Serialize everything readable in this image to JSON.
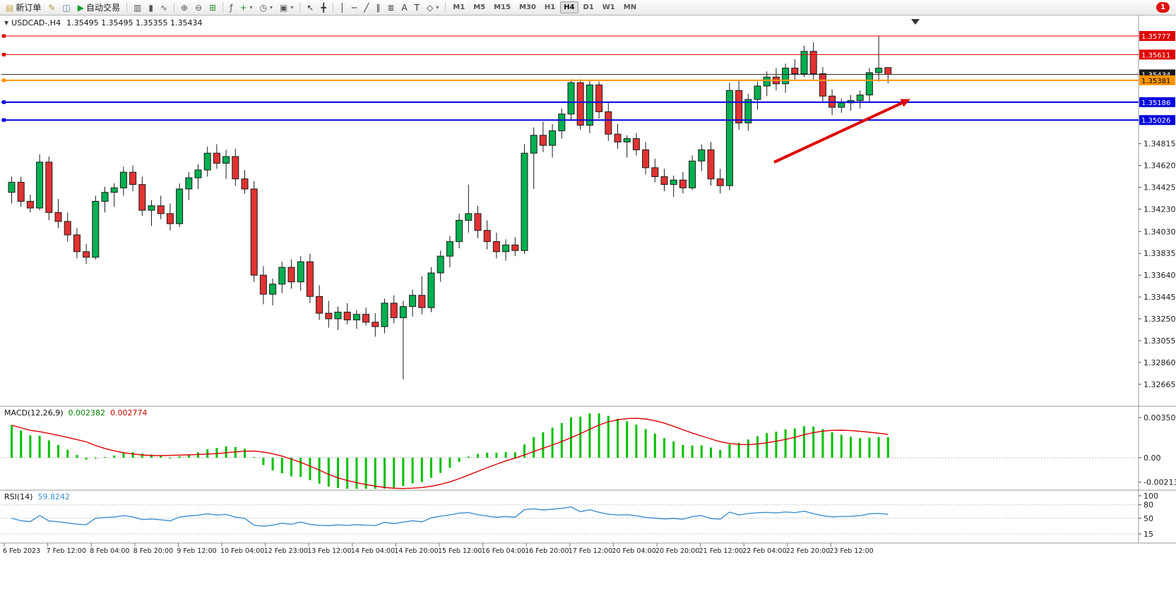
{
  "toolbar": {
    "items": [
      {
        "name": "new-order-button",
        "glyph": "▤",
        "glyph_color": "#caa53d",
        "label": "新订单"
      },
      {
        "name": "metaeditor-button",
        "glyph": "✎",
        "glyph_color": "#b8912f"
      },
      {
        "name": "data-window-button",
        "glyph": "◫",
        "glyph_color": "#5577aa"
      },
      {
        "name": "autotrading-button",
        "glyph": "▶",
        "glyph_color": "#0f9d2e",
        "label": "自动交易"
      },
      {
        "sep": true
      },
      {
        "name": "bar-chart-button",
        "glyph": "▥",
        "glyph_color": "#555555"
      },
      {
        "name": "candlestick-chart-button",
        "glyph": "▮",
        "glyph_color": "#555555"
      },
      {
        "name": "line-chart-button",
        "glyph": "∿",
        "glyph_color": "#555555"
      },
      {
        "sep": true
      },
      {
        "name": "zoom-in-button",
        "glyph": "⊕",
        "glyph_color": "#555555"
      },
      {
        "name": "zoom-out-button",
        "glyph": "⊖",
        "glyph_color": "#555555"
      },
      {
        "name": "tile-windows-button",
        "glyph": "⊞",
        "glyph_color": "#2e8b2e"
      },
      {
        "sep": true
      },
      {
        "name": "indicators-button",
        "glyph": "ƒ",
        "glyph_color": "#555555"
      },
      {
        "name": "add-indicator-button",
        "glyph": "+",
        "glyph_color": "#0f9d2e",
        "dropdown": true
      },
      {
        "name": "period-button",
        "glyph": "◷",
        "glyph_color": "#555555",
        "dropdown": true
      },
      {
        "name": "chart-snapshot-button",
        "glyph": "▣",
        "glyph_color": "#555555",
        "dropdown": true
      },
      {
        "sep": true
      },
      {
        "name": "cursor-button",
        "glyph": "↖",
        "glyph_color": "#333333"
      },
      {
        "name": "crosshair-button",
        "glyph": "╋",
        "glyph_color": "#333333"
      },
      {
        "sep": true
      },
      {
        "name": "vertical-line-button",
        "glyph": "│",
        "glyph_color": "#333333"
      },
      {
        "name": "horizontal-line-button",
        "glyph": "─",
        "glyph_color": "#333333"
      },
      {
        "name": "trendline-button",
        "glyph": "╱",
        "glyph_color": "#333333"
      },
      {
        "name": "equidistant-channel-button",
        "glyph": "∥",
        "glyph_color": "#333333"
      },
      {
        "name": "fibonacci-button",
        "glyph": "≣",
        "glyph_color": "#333333"
      },
      {
        "name": "text-button",
        "glyph": "A",
        "glyph_color": "#333333"
      },
      {
        "name": "text-label-button",
        "glyph": "T",
        "glyph_color": "#333333"
      },
      {
        "name": "shapes-button",
        "glyph": "◇",
        "glyph_color": "#333333",
        "dropdown": true
      },
      {
        "sep": true
      }
    ],
    "timeframes": [
      "M1",
      "M5",
      "M15",
      "M30",
      "H1",
      "H4",
      "D1",
      "W1",
      "MN"
    ],
    "active_timeframe": "H4",
    "notification_badge": "1"
  },
  "chart_header": {
    "symbol_period": "USDCAD-,H4",
    "ohlc": "1.35495 1.35495 1.35355 1.35434"
  },
  "chart_data": {
    "type": "candlestick",
    "symbol": "USDCAD",
    "timeframe": "H4",
    "price_axis": {
      "min": 1.32469,
      "max": 1.3596,
      "ticks": [
        "1.34815",
        "1.34620",
        "1.34425",
        "1.34230",
        "1.34030",
        "1.33835",
        "1.33640",
        "1.33445",
        "1.33250",
        "1.33055",
        "1.32860",
        "1.32665"
      ]
    },
    "time_axis": [
      "6 Feb 2023",
      "7 Feb 12:00",
      "8 Feb 04:00",
      "8 Feb 20:00",
      "9 Feb 12:00",
      "10 Feb 04:00",
      "12 Feb 23:00",
      "13 Feb 12:00",
      "14 Feb 04:00",
      "14 Feb 20:00",
      "15 Feb 12:00",
      "16 Feb 04:00",
      "16 Feb 20:00",
      "17 Feb 12:00",
      "20 Feb 04:00",
      "20 Feb 20:00",
      "21 Feb 12:00",
      "22 Feb 04:00",
      "22 Feb 20:00",
      "23 Feb 12:00"
    ],
    "levels": [
      {
        "name": "resistance-line-1",
        "price": 1.35777,
        "label": "1.35777",
        "color": "#e00000",
        "width": 1,
        "tag_bg": "#e00000",
        "tag_fg": "#ffffff"
      },
      {
        "name": "resistance-line-2",
        "price": 1.35611,
        "label": "1.35611",
        "color": "#e00000",
        "width": 1,
        "tag_bg": "#e00000",
        "tag_fg": "#ffffff"
      },
      {
        "name": "current-price-line",
        "price": 1.35434,
        "label": "1.35434",
        "color": "#303030",
        "width": 1,
        "tag_bg": "#1a1a1a",
        "tag_fg": "#ffffff",
        "current": true
      },
      {
        "name": "pivot-line",
        "price": 1.35381,
        "label": "1.35381",
        "color": "#ff9500",
        "width": 2,
        "tag_bg": "#ff9500",
        "tag_fg": "#000000"
      },
      {
        "name": "support-line-1",
        "price": 1.35186,
        "label": "1.35186",
        "color": "#0000dd",
        "width": 2,
        "tag_bg": "#0000dd",
        "tag_fg": "#ffffff"
      },
      {
        "name": "support-line-2",
        "price": 1.35026,
        "label": "1.35026",
        "color": "#0000dd",
        "width": 2,
        "tag_bg": "#0000dd",
        "tag_fg": "#ffffff"
      }
    ],
    "candles": [
      [
        1.3438,
        1.3452,
        1.3428,
        1.3447
      ],
      [
        1.3447,
        1.3452,
        1.3425,
        1.343
      ],
      [
        1.343,
        1.3436,
        1.342,
        1.3424
      ],
      [
        1.3424,
        1.3472,
        1.3422,
        1.3465
      ],
      [
        1.3465,
        1.347,
        1.3413,
        1.342
      ],
      [
        1.342,
        1.3432,
        1.3406,
        1.3412
      ],
      [
        1.3412,
        1.342,
        1.3394,
        1.34
      ],
      [
        1.34,
        1.3406,
        1.3379,
        1.3385
      ],
      [
        1.3385,
        1.3392,
        1.3374,
        1.338
      ],
      [
        1.338,
        1.3435,
        1.3378,
        1.343
      ],
      [
        1.343,
        1.3443,
        1.342,
        1.3438
      ],
      [
        1.3438,
        1.3446,
        1.3425,
        1.3442
      ],
      [
        1.3442,
        1.3461,
        1.3435,
        1.3456
      ],
      [
        1.3456,
        1.3462,
        1.3439,
        1.3445
      ],
      [
        1.3445,
        1.3452,
        1.3417,
        1.3422
      ],
      [
        1.3422,
        1.3431,
        1.3408,
        1.3426
      ],
      [
        1.3426,
        1.3435,
        1.3414,
        1.3419
      ],
      [
        1.3419,
        1.3428,
        1.3404,
        1.341
      ],
      [
        1.341,
        1.3446,
        1.3407,
        1.3441
      ],
      [
        1.3441,
        1.3456,
        1.3431,
        1.3451
      ],
      [
        1.3451,
        1.3463,
        1.3441,
        1.3458
      ],
      [
        1.3458,
        1.3479,
        1.3452,
        1.3473
      ],
      [
        1.3473,
        1.3481,
        1.3459,
        1.3464
      ],
      [
        1.3464,
        1.3476,
        1.345,
        1.347
      ],
      [
        1.347,
        1.3477,
        1.3444,
        1.345
      ],
      [
        1.345,
        1.3458,
        1.3437,
        1.3441
      ],
      [
        1.3441,
        1.3448,
        1.3358,
        1.3364
      ],
      [
        1.3364,
        1.3372,
        1.3338,
        1.3347
      ],
      [
        1.3347,
        1.3361,
        1.3337,
        1.3356
      ],
      [
        1.3356,
        1.3376,
        1.3348,
        1.3371
      ],
      [
        1.3371,
        1.3378,
        1.3352,
        1.3358
      ],
      [
        1.3358,
        1.3381,
        1.335,
        1.3376
      ],
      [
        1.3376,
        1.3383,
        1.3339,
        1.3345
      ],
      [
        1.3345,
        1.3355,
        1.3324,
        1.333
      ],
      [
        1.333,
        1.3341,
        1.3317,
        1.3325
      ],
      [
        1.3325,
        1.3336,
        1.3315,
        1.3331
      ],
      [
        1.3331,
        1.3339,
        1.332,
        1.3324
      ],
      [
        1.3324,
        1.3333,
        1.3316,
        1.3329
      ],
      [
        1.3329,
        1.3335,
        1.3319,
        1.3322
      ],
      [
        1.3322,
        1.333,
        1.3309,
        1.3318
      ],
      [
        1.3318,
        1.3343,
        1.3312,
        1.3339
      ],
      [
        1.3339,
        1.3346,
        1.3321,
        1.3326
      ],
      [
        1.3326,
        1.3341,
        1.3271,
        1.3336
      ],
      [
        1.3336,
        1.3351,
        1.3327,
        1.3346
      ],
      [
        1.3346,
        1.3363,
        1.3329,
        1.3335
      ],
      [
        1.3335,
        1.3371,
        1.3331,
        1.3366
      ],
      [
        1.3366,
        1.3386,
        1.3358,
        1.3381
      ],
      [
        1.3381,
        1.3399,
        1.3371,
        1.3394
      ],
      [
        1.3394,
        1.3419,
        1.3388,
        1.3413
      ],
      [
        1.3413,
        1.3445,
        1.3402,
        1.3419
      ],
      [
        1.3419,
        1.3426,
        1.3397,
        1.3404
      ],
      [
        1.3404,
        1.3413,
        1.3387,
        1.3394
      ],
      [
        1.3394,
        1.3402,
        1.3379,
        1.3385
      ],
      [
        1.3385,
        1.3396,
        1.3377,
        1.3391
      ],
      [
        1.3391,
        1.3398,
        1.3381,
        1.3386
      ],
      [
        1.3386,
        1.3481,
        1.3383,
        1.3473
      ],
      [
        1.3473,
        1.3496,
        1.3441,
        1.3489
      ],
      [
        1.3489,
        1.3501,
        1.3474,
        1.348
      ],
      [
        1.348,
        1.3499,
        1.3469,
        1.3493
      ],
      [
        1.3493,
        1.3513,
        1.3486,
        1.3508
      ],
      [
        1.3508,
        1.3539,
        1.3502,
        1.3536
      ],
      [
        1.3536,
        1.3539,
        1.3494,
        1.3498
      ],
      [
        1.3498,
        1.3538,
        1.3491,
        1.3534
      ],
      [
        1.3534,
        1.3537,
        1.3504,
        1.351
      ],
      [
        1.351,
        1.3518,
        1.3484,
        1.349
      ],
      [
        1.349,
        1.3499,
        1.3477,
        1.3483
      ],
      [
        1.3483,
        1.3489,
        1.3469,
        1.3486
      ],
      [
        1.3486,
        1.3491,
        1.3471,
        1.3476
      ],
      [
        1.3476,
        1.3483,
        1.3454,
        1.346
      ],
      [
        1.346,
        1.3468,
        1.3447,
        1.3452
      ],
      [
        1.3452,
        1.3459,
        1.3439,
        1.3445
      ],
      [
        1.3445,
        1.3453,
        1.3434,
        1.3449
      ],
      [
        1.3449,
        1.3456,
        1.3437,
        1.3442
      ],
      [
        1.3442,
        1.3471,
        1.344,
        1.3466
      ],
      [
        1.3466,
        1.3481,
        1.3457,
        1.3476
      ],
      [
        1.3476,
        1.3483,
        1.3444,
        1.345
      ],
      [
        1.345,
        1.3459,
        1.3437,
        1.3444
      ],
      [
        1.3444,
        1.3536,
        1.344,
        1.3529
      ],
      [
        1.3529,
        1.3538,
        1.3494,
        1.35
      ],
      [
        1.35,
        1.3526,
        1.3493,
        1.3521
      ],
      [
        1.3521,
        1.3537,
        1.3512,
        1.3533
      ],
      [
        1.3533,
        1.3546,
        1.3524,
        1.3541
      ],
      [
        1.3541,
        1.3549,
        1.3529,
        1.3535
      ],
      [
        1.3535,
        1.3553,
        1.3527,
        1.3549
      ],
      [
        1.3549,
        1.3557,
        1.3539,
        1.3544
      ],
      [
        1.3544,
        1.3569,
        1.3541,
        1.3564
      ],
      [
        1.3564,
        1.3572,
        1.3539,
        1.3544
      ],
      [
        1.3544,
        1.355,
        1.3518,
        1.3524
      ],
      [
        1.3524,
        1.353,
        1.3507,
        1.3514
      ],
      [
        1.3514,
        1.3522,
        1.3509,
        1.3518
      ],
      [
        1.3518,
        1.3525,
        1.3511,
        1.352
      ],
      [
        1.352,
        1.3529,
        1.3513,
        1.3525
      ],
      [
        1.3525,
        1.3549,
        1.3519,
        1.3545
      ],
      [
        1.3545,
        1.35777,
        1.3537,
        1.3549
      ],
      [
        1.35495,
        1.35495,
        1.35355,
        1.35434
      ]
    ],
    "indicators": {
      "macd": {
        "title": "MACD(12,26,9)",
        "value_main": "0.002382",
        "value_signal": "0.002774",
        "axis": [
          "0.003508",
          "0.00",
          "-0.002138"
        ],
        "params": {
          "fast": 12,
          "slow": 26,
          "signal": 9
        },
        "histogram_color": "#00c000",
        "signal_color": "#e00000"
      },
      "rsi": {
        "title": "RSI(14)",
        "value": "59.8242",
        "axis": [
          "100",
          "80",
          "50",
          "15"
        ],
        "levels": [
          80,
          50,
          15
        ],
        "period": 14,
        "line_color": "#3f8fd2"
      }
    },
    "annotation_arrow": {
      "from": [
        1096,
        208
      ],
      "to": [
        1277,
        124
      ],
      "color": "#e00000"
    }
  }
}
